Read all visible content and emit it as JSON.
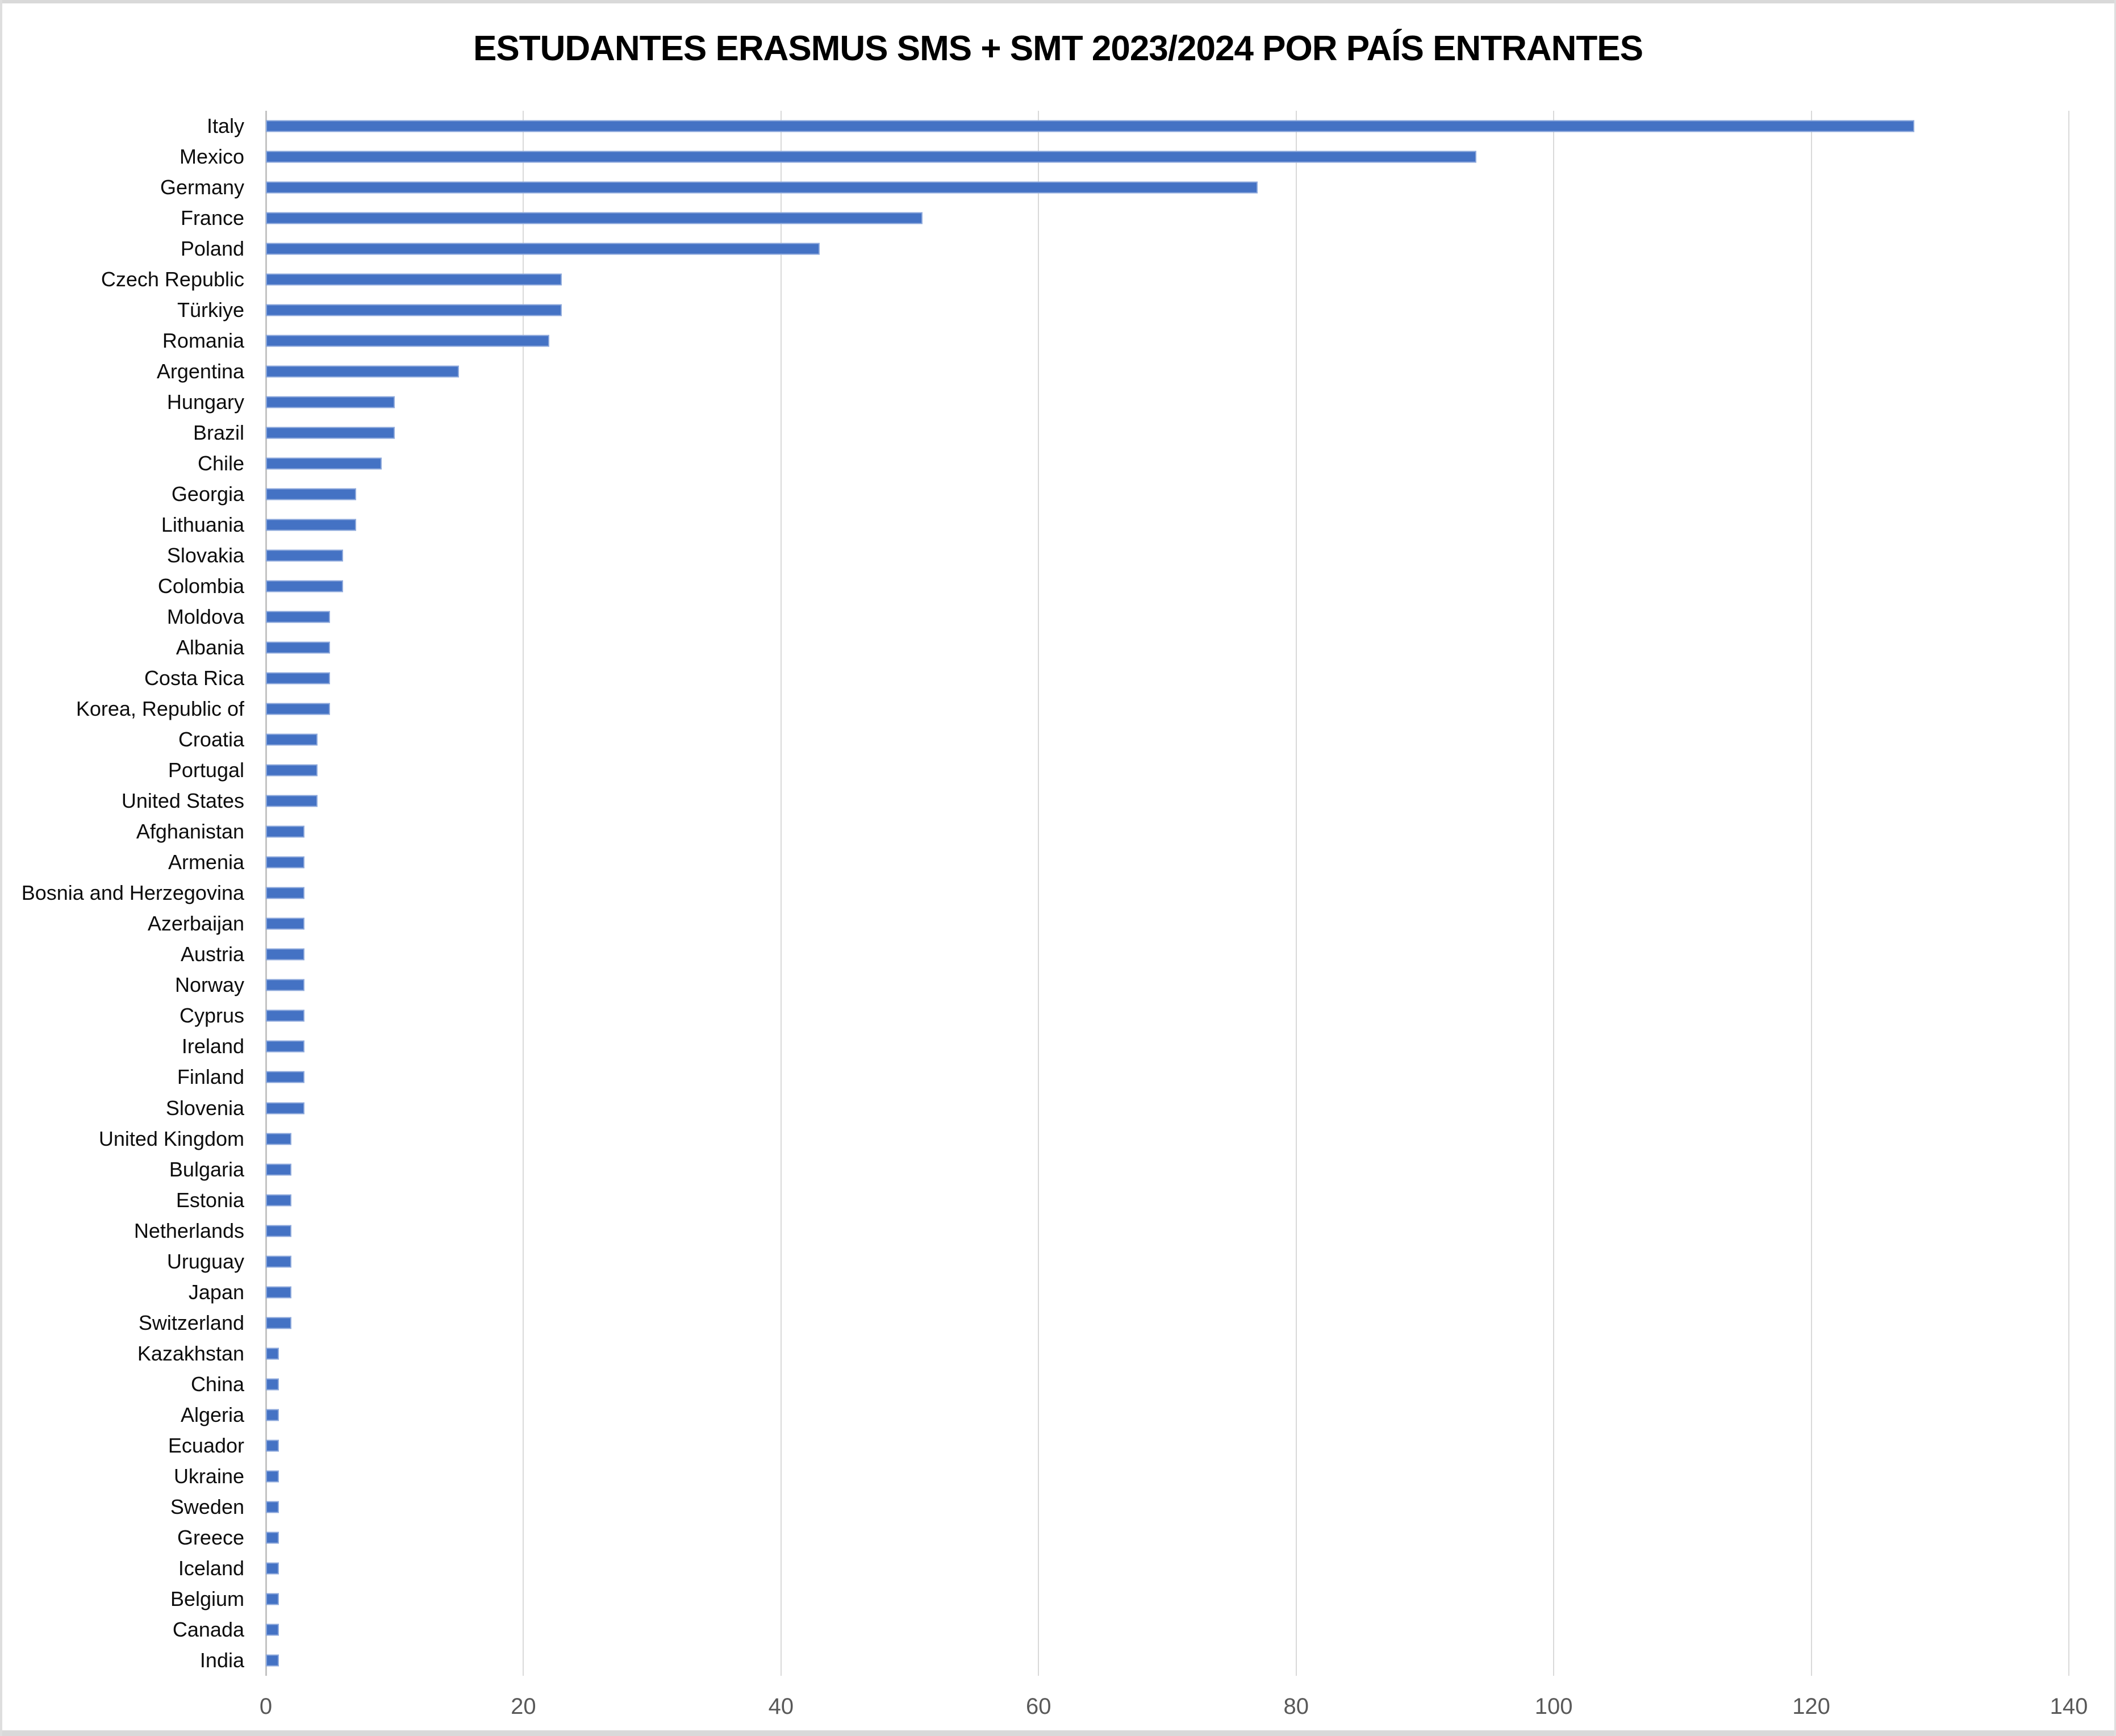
{
  "chart_data": {
    "type": "bar",
    "orientation": "horizontal",
    "title": "ESTUDANTES ERASMUS SMS + SMT 2023/2024 POR PAÍS ENTRANTES",
    "xlabel": "",
    "ylabel": "",
    "xlim": [
      0,
      140
    ],
    "x_ticks": [
      0,
      20,
      40,
      60,
      80,
      100,
      120,
      140
    ],
    "grid": "vertical-gridlines-on",
    "legend": "none",
    "categories": [
      "Italy",
      "Mexico",
      "Germany",
      "France",
      "Poland",
      "Czech Republic",
      "Türkiye",
      "Romania",
      "Argentina",
      "Hungary",
      "Brazil",
      "Chile",
      "Georgia",
      "Lithuania",
      "Slovakia",
      "Colombia",
      "Moldova",
      "Albania",
      "Costa Rica",
      "Korea, Republic of",
      "Croatia",
      "Portugal",
      "United States",
      "Afghanistan",
      "Armenia",
      "Bosnia and Herzegovina",
      "Azerbaijan",
      "Austria",
      "Norway",
      "Cyprus",
      "Ireland",
      "Finland",
      "Slovenia",
      "United Kingdom",
      "Bulgaria",
      "Estonia",
      "Netherlands",
      "Uruguay",
      "Japan",
      "Switzerland",
      "Kazakhstan",
      "China",
      "Algeria",
      "Ecuador",
      "Ukraine",
      "Sweden",
      "Greece",
      "Iceland",
      "Belgium",
      "Canada",
      "India"
    ],
    "values": [
      128,
      94,
      77,
      51,
      43,
      23,
      23,
      22,
      15,
      10,
      10,
      9,
      7,
      7,
      6,
      6,
      5,
      5,
      5,
      5,
      4,
      4,
      4,
      3,
      3,
      3,
      3,
      3,
      3,
      3,
      3,
      3,
      3,
      2,
      2,
      2,
      2,
      2,
      2,
      2,
      1,
      1,
      1,
      1,
      1,
      1,
      1,
      1,
      1,
      1,
      1
    ],
    "colors": {
      "bar_fill": "#4472C4",
      "bar_border": "#8FAADC",
      "gridline": "#D9D9D9",
      "zero_axis_line": "#C3C3C3",
      "tick_label": "#595959",
      "category_label": "#0D0D0D",
      "title": "#000000",
      "background": "#FFFFFF",
      "frame_edge": "#D9D9D9"
    }
  }
}
